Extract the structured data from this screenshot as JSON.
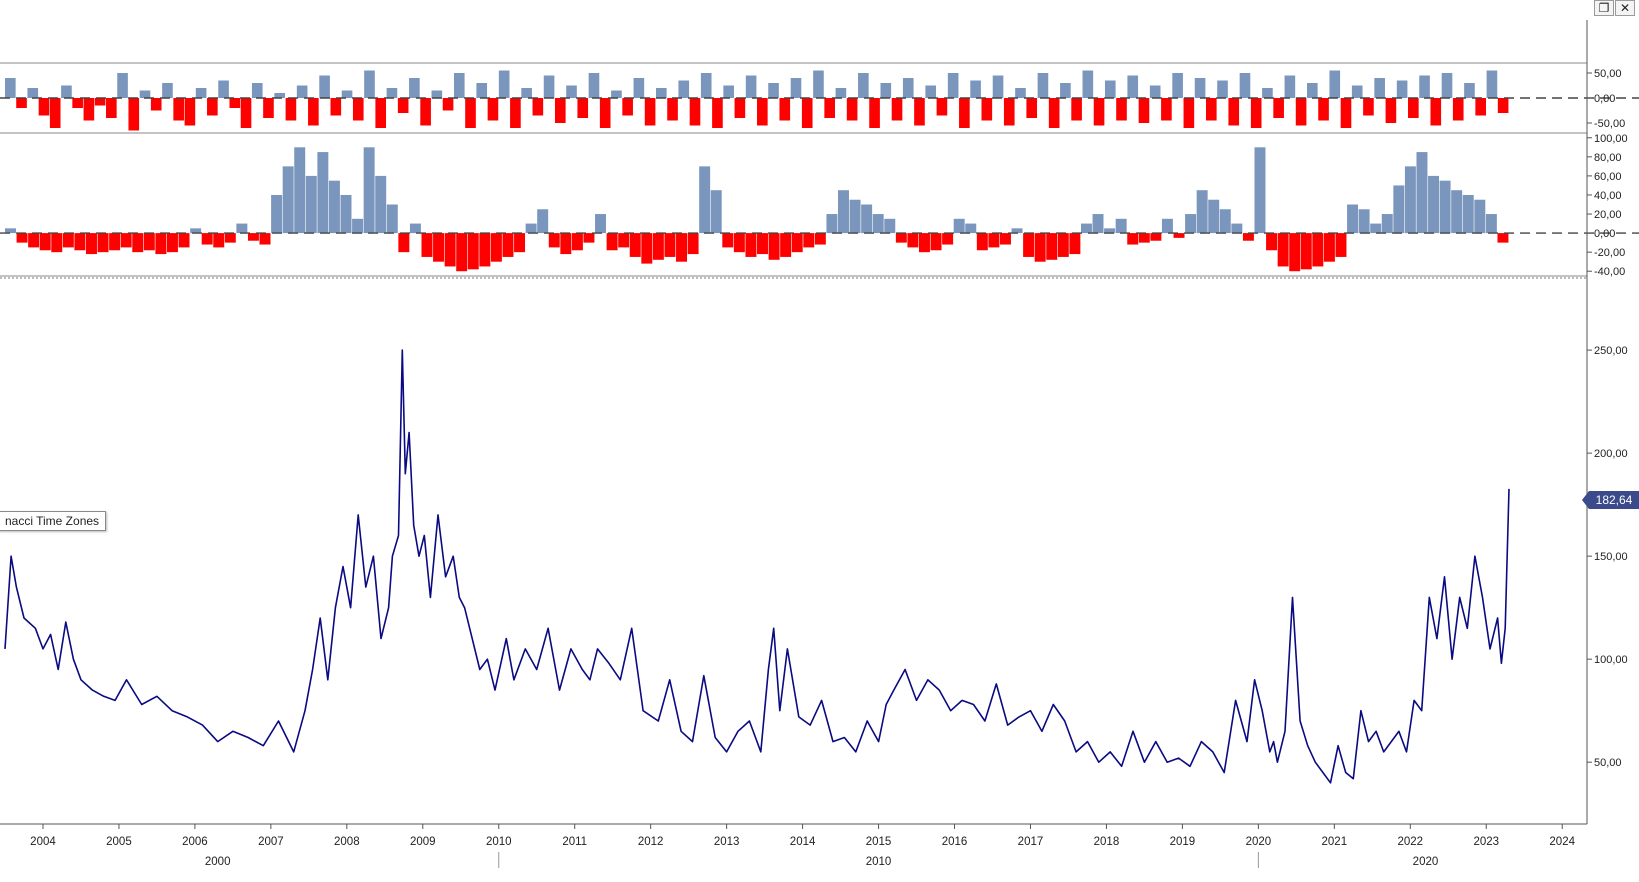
{
  "window_controls": {
    "restore_symbol": "❐",
    "close_symbol": "✕"
  },
  "fib_label": "nacci Time Zones",
  "last_value_label": "182,64",
  "colors": {
    "price": "#0a0a82",
    "positive": "#7b96bd",
    "negative": "#ff0000",
    "axis": "#555555"
  },
  "chart_data": [
    {
      "type": "bar",
      "panel": "oscillator-1",
      "y_ticks": [
        "50,00",
        "0,00",
        "-50,00"
      ],
      "ylim": [
        -70,
        70
      ],
      "zero_line": "dashed",
      "x_range": [
        2003.5,
        2024.3
      ],
      "values": [
        40,
        -20,
        20,
        -35,
        -60,
        25,
        -20,
        -45,
        -15,
        -40,
        50,
        -65,
        15,
        -25,
        30,
        -45,
        -55,
        20,
        -35,
        35,
        -20,
        -60,
        30,
        -40,
        10,
        -45,
        25,
        -55,
        45,
        -35,
        15,
        -45,
        55,
        -60,
        20,
        -30,
        40,
        -55,
        15,
        -25,
        50,
        -60,
        30,
        -45,
        55,
        -60,
        20,
        -35,
        45,
        -50,
        25,
        -40,
        50,
        -60,
        15,
        -35,
        40,
        -55,
        20,
        -45,
        35,
        -55,
        50,
        -60,
        25,
        -40,
        45,
        -55,
        30,
        -45,
        40,
        -60,
        55,
        -40,
        20,
        -45,
        50,
        -60,
        30,
        -45,
        40,
        -55,
        25,
        -35,
        50,
        -60,
        35,
        -45,
        45,
        -55,
        20,
        -40,
        50,
        -60,
        30,
        -45,
        55,
        -55,
        35,
        -45,
        45,
        -50,
        25,
        -45,
        50,
        -60,
        40,
        -45,
        35,
        -55,
        50,
        -60,
        20,
        -40,
        45,
        -55,
        30,
        -45,
        55,
        -60,
        25,
        -35,
        40,
        -50,
        35,
        -40,
        45,
        -55,
        50,
        -45,
        30,
        -35,
        55,
        -30
      ]
    },
    {
      "type": "bar",
      "panel": "oscillator-2",
      "y_ticks": [
        "100,00",
        "80,00",
        "60,00",
        "40,00",
        "20,00",
        "0,00",
        "-20,00",
        "-40,00"
      ],
      "ylim": [
        -45,
        105
      ],
      "zero_line": "dashed",
      "x_range": [
        2003.5,
        2024.3
      ],
      "values": [
        5,
        -10,
        -15,
        -18,
        -20,
        -15,
        -18,
        -22,
        -20,
        -18,
        -15,
        -20,
        -18,
        -22,
        -20,
        -15,
        5,
        -12,
        -15,
        -10,
        10,
        -8,
        -12,
        40,
        70,
        90,
        60,
        85,
        55,
        40,
        15,
        90,
        60,
        30,
        -20,
        10,
        -25,
        -30,
        -35,
        -40,
        -38,
        -35,
        -30,
        -25,
        -20,
        10,
        25,
        -15,
        -22,
        -18,
        -10,
        20,
        -18,
        -15,
        -25,
        -32,
        -28,
        -25,
        -30,
        -22,
        70,
        45,
        -15,
        -20,
        -25,
        -22,
        -28,
        -25,
        -20,
        -15,
        -12,
        20,
        45,
        35,
        30,
        20,
        15,
        -10,
        -15,
        -20,
        -18,
        -12,
        15,
        10,
        -18,
        -15,
        -12,
        5,
        -25,
        -30,
        -28,
        -25,
        -22,
        10,
        20,
        5,
        15,
        -12,
        -10,
        -8,
        15,
        -5,
        20,
        45,
        35,
        25,
        10,
        -8,
        90,
        -18,
        -35,
        -40,
        -38,
        -35,
        -30,
        -25,
        30,
        25,
        10,
        20,
        50,
        70,
        85,
        60,
        55,
        45,
        40,
        35,
        20,
        -10
      ]
    },
    {
      "type": "line",
      "panel": "price",
      "y_ticks": [
        "250,00",
        "200,00",
        "150,00",
        "100,00",
        "50,00"
      ],
      "ylim": [
        20,
        285
      ],
      "x_range": [
        2003.5,
        2024.3
      ],
      "x_ticks": [
        "2004",
        "2005",
        "2006",
        "2007",
        "2008",
        "2009",
        "2010",
        "2011",
        "2012",
        "2013",
        "2014",
        "2015",
        "2016",
        "2017",
        "2018",
        "2019",
        "2020",
        "2021",
        "2022",
        "2023",
        "2024"
      ],
      "decade_ticks": [
        "2000",
        "2010",
        "2020"
      ],
      "last_value": 182.64,
      "x": [
        2003.5,
        2003.58,
        2003.65,
        2003.75,
        2003.9,
        2004.0,
        2004.1,
        2004.2,
        2004.3,
        2004.4,
        2004.5,
        2004.65,
        2004.8,
        2004.95,
        2005.1,
        2005.3,
        2005.5,
        2005.7,
        2005.9,
        2006.1,
        2006.3,
        2006.5,
        2006.7,
        2006.9,
        2007.1,
        2007.3,
        2007.45,
        2007.55,
        2007.65,
        2007.75,
        2007.85,
        2007.95,
        2008.05,
        2008.15,
        2008.25,
        2008.35,
        2008.45,
        2008.55,
        2008.6,
        2008.68,
        2008.73,
        2008.77,
        2008.82,
        2008.88,
        2008.95,
        2009.02,
        2009.1,
        2009.2,
        2009.3,
        2009.4,
        2009.48,
        2009.55,
        2009.65,
        2009.75,
        2009.85,
        2009.95,
        2010.1,
        2010.2,
        2010.35,
        2010.5,
        2010.65,
        2010.8,
        2010.95,
        2011.1,
        2011.2,
        2011.3,
        2011.45,
        2011.6,
        2011.75,
        2011.9,
        2012.1,
        2012.25,
        2012.4,
        2012.55,
        2012.7,
        2012.85,
        2013.0,
        2013.15,
        2013.3,
        2013.45,
        2013.55,
        2013.62,
        2013.7,
        2013.8,
        2013.95,
        2014.1,
        2014.25,
        2014.4,
        2014.55,
        2014.7,
        2014.85,
        2015.0,
        2015.1,
        2015.2,
        2015.35,
        2015.5,
        2015.65,
        2015.8,
        2015.95,
        2016.1,
        2016.25,
        2016.4,
        2016.55,
        2016.7,
        2016.85,
        2017.0,
        2017.15,
        2017.3,
        2017.45,
        2017.6,
        2017.75,
        2017.9,
        2018.05,
        2018.2,
        2018.35,
        2018.5,
        2018.65,
        2018.8,
        2018.95,
        2019.1,
        2019.25,
        2019.4,
        2019.55,
        2019.7,
        2019.85,
        2019.95,
        2020.05,
        2020.15,
        2020.2,
        2020.25,
        2020.35,
        2020.45,
        2020.55,
        2020.65,
        2020.75,
        2020.85,
        2020.95,
        2021.05,
        2021.15,
        2021.25,
        2021.35,
        2021.45,
        2021.55,
        2021.65,
        2021.75,
        2021.85,
        2021.95,
        2022.05,
        2022.15,
        2022.25,
        2022.35,
        2022.45,
        2022.55,
        2022.65,
        2022.75,
        2022.85,
        2022.95,
        2023.05,
        2023.15,
        2023.2,
        2023.25,
        2023.3
      ],
      "y": [
        105,
        150,
        135,
        120,
        115,
        105,
        112,
        95,
        118,
        100,
        90,
        85,
        82,
        80,
        90,
        78,
        82,
        75,
        72,
        68,
        60,
        65,
        62,
        58,
        70,
        55,
        75,
        95,
        120,
        90,
        125,
        145,
        125,
        170,
        135,
        150,
        110,
        125,
        150,
        160,
        250,
        190,
        210,
        165,
        150,
        160,
        130,
        170,
        140,
        150,
        130,
        125,
        110,
        95,
        100,
        85,
        110,
        90,
        105,
        95,
        115,
        85,
        105,
        95,
        90,
        105,
        98,
        90,
        115,
        75,
        70,
        90,
        65,
        60,
        92,
        62,
        55,
        65,
        70,
        55,
        95,
        115,
        75,
        105,
        72,
        68,
        80,
        60,
        62,
        55,
        70,
        60,
        78,
        85,
        95,
        80,
        90,
        85,
        75,
        80,
        78,
        70,
        88,
        68,
        72,
        75,
        65,
        78,
        70,
        55,
        60,
        50,
        55,
        48,
        65,
        50,
        60,
        50,
        52,
        48,
        60,
        55,
        45,
        80,
        60,
        90,
        75,
        55,
        60,
        50,
        65,
        130,
        70,
        58,
        50,
        45,
        40,
        58,
        45,
        42,
        75,
        60,
        65,
        55,
        60,
        65,
        55,
        80,
        75,
        130,
        110,
        140,
        100,
        130,
        115,
        150,
        130,
        105,
        120,
        98,
        115,
        182.64
      ]
    }
  ]
}
